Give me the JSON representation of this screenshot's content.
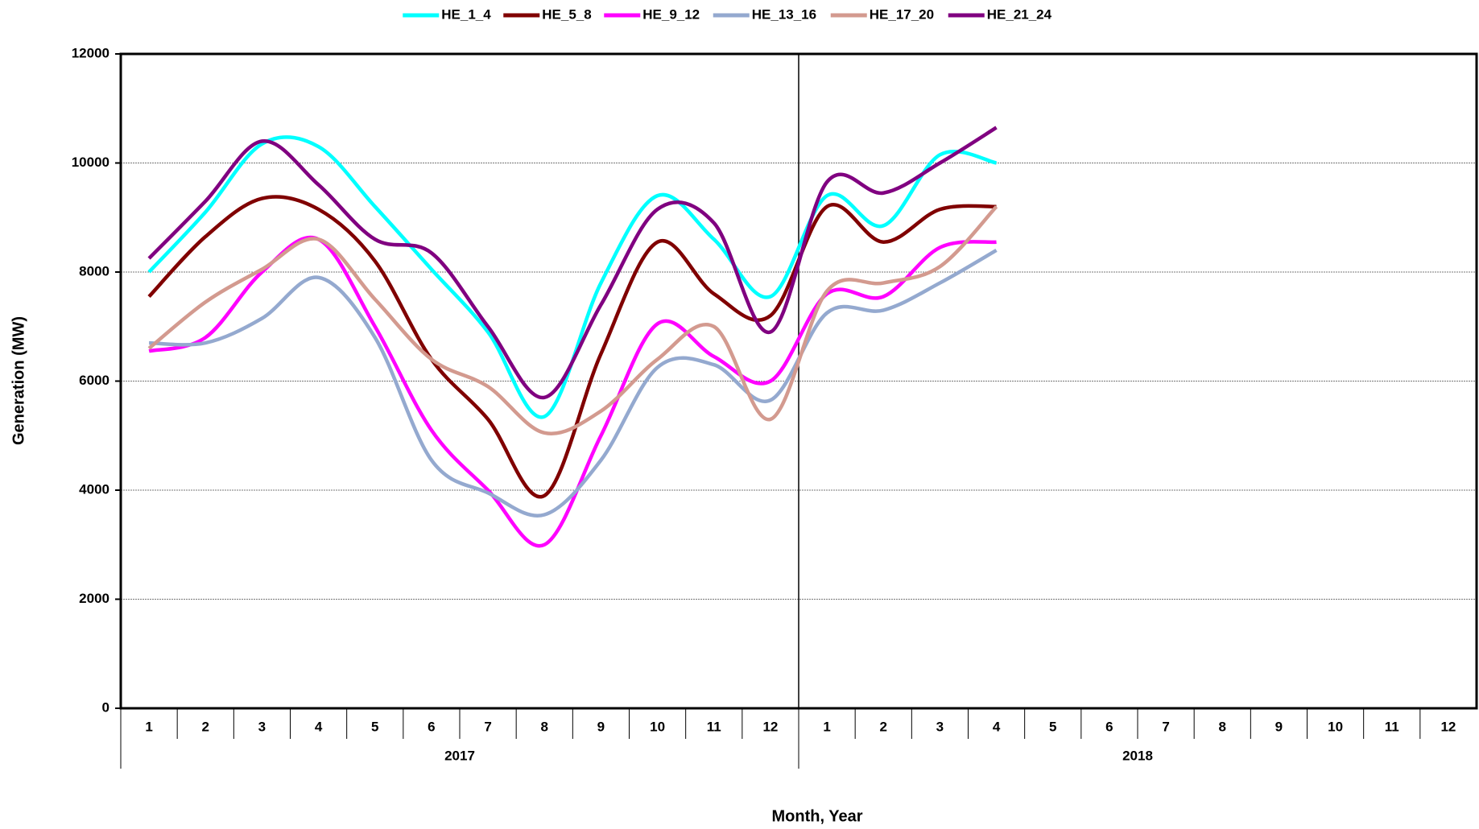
{
  "chart_data": {
    "type": "line",
    "x_label": "Month, Year",
    "y_label": "Generation (MW)",
    "categories": [
      "1",
      "2",
      "3",
      "4",
      "5",
      "6",
      "7",
      "8",
      "9",
      "10",
      "11",
      "12",
      "1",
      "2",
      "3",
      "4",
      "5",
      "6",
      "7",
      "8",
      "9",
      "10",
      "11",
      "12"
    ],
    "groups": [
      "2017",
      "2018"
    ],
    "ylim": [
      0,
      12000
    ],
    "yticks": [
      0,
      2000,
      4000,
      6000,
      8000,
      10000,
      12000
    ],
    "grid": true,
    "legend": "top",
    "series": [
      {
        "name": "HE_1_4",
        "color": "#00ffff",
        "values": [
          8000,
          9100,
          10350,
          10300,
          9200,
          8050,
          6900,
          5350,
          7800,
          9400,
          8600,
          7550,
          9400,
          8850,
          10150,
          10000,
          null,
          null,
          null,
          null,
          null,
          null,
          null,
          null
        ]
      },
      {
        "name": "HE_5_8",
        "color": "#800000",
        "values": [
          7550,
          8650,
          9350,
          9150,
          8200,
          6400,
          5300,
          3900,
          6500,
          8550,
          7600,
          7200,
          9200,
          8550,
          9150,
          9200,
          null,
          null,
          null,
          null,
          null,
          null,
          null,
          null
        ]
      },
      {
        "name": "HE_9_12",
        "color": "#ff00ff",
        "values": [
          6550,
          6800,
          8000,
          8600,
          7000,
          5100,
          4000,
          3000,
          5000,
          7050,
          6450,
          6000,
          7600,
          7550,
          8450,
          8550,
          null,
          null,
          null,
          null,
          null,
          null,
          null,
          null
        ]
      },
      {
        "name": "HE_13_16",
        "color": "#94a9cf",
        "values": [
          6700,
          6700,
          7150,
          7900,
          6800,
          4550,
          3950,
          3550,
          4550,
          6250,
          6300,
          5650,
          7250,
          7300,
          7800,
          8400,
          null,
          null,
          null,
          null,
          null,
          null,
          null,
          null
        ]
      },
      {
        "name": "HE_17_20",
        "color": "#d39a8f",
        "values": [
          6600,
          7450,
          8050,
          8600,
          7500,
          6400,
          5900,
          5050,
          5450,
          6400,
          7000,
          5300,
          7650,
          7800,
          8100,
          9200,
          null,
          null,
          null,
          null,
          null,
          null,
          null,
          null
        ]
      },
      {
        "name": "HE_21_24",
        "color": "#800080",
        "values": [
          8250,
          9300,
          10400,
          9600,
          8600,
          8350,
          7000,
          5700,
          7400,
          9150,
          8900,
          6900,
          9650,
          9450,
          10000,
          10650,
          null,
          null,
          null,
          null,
          null,
          null,
          null,
          null
        ]
      }
    ]
  }
}
